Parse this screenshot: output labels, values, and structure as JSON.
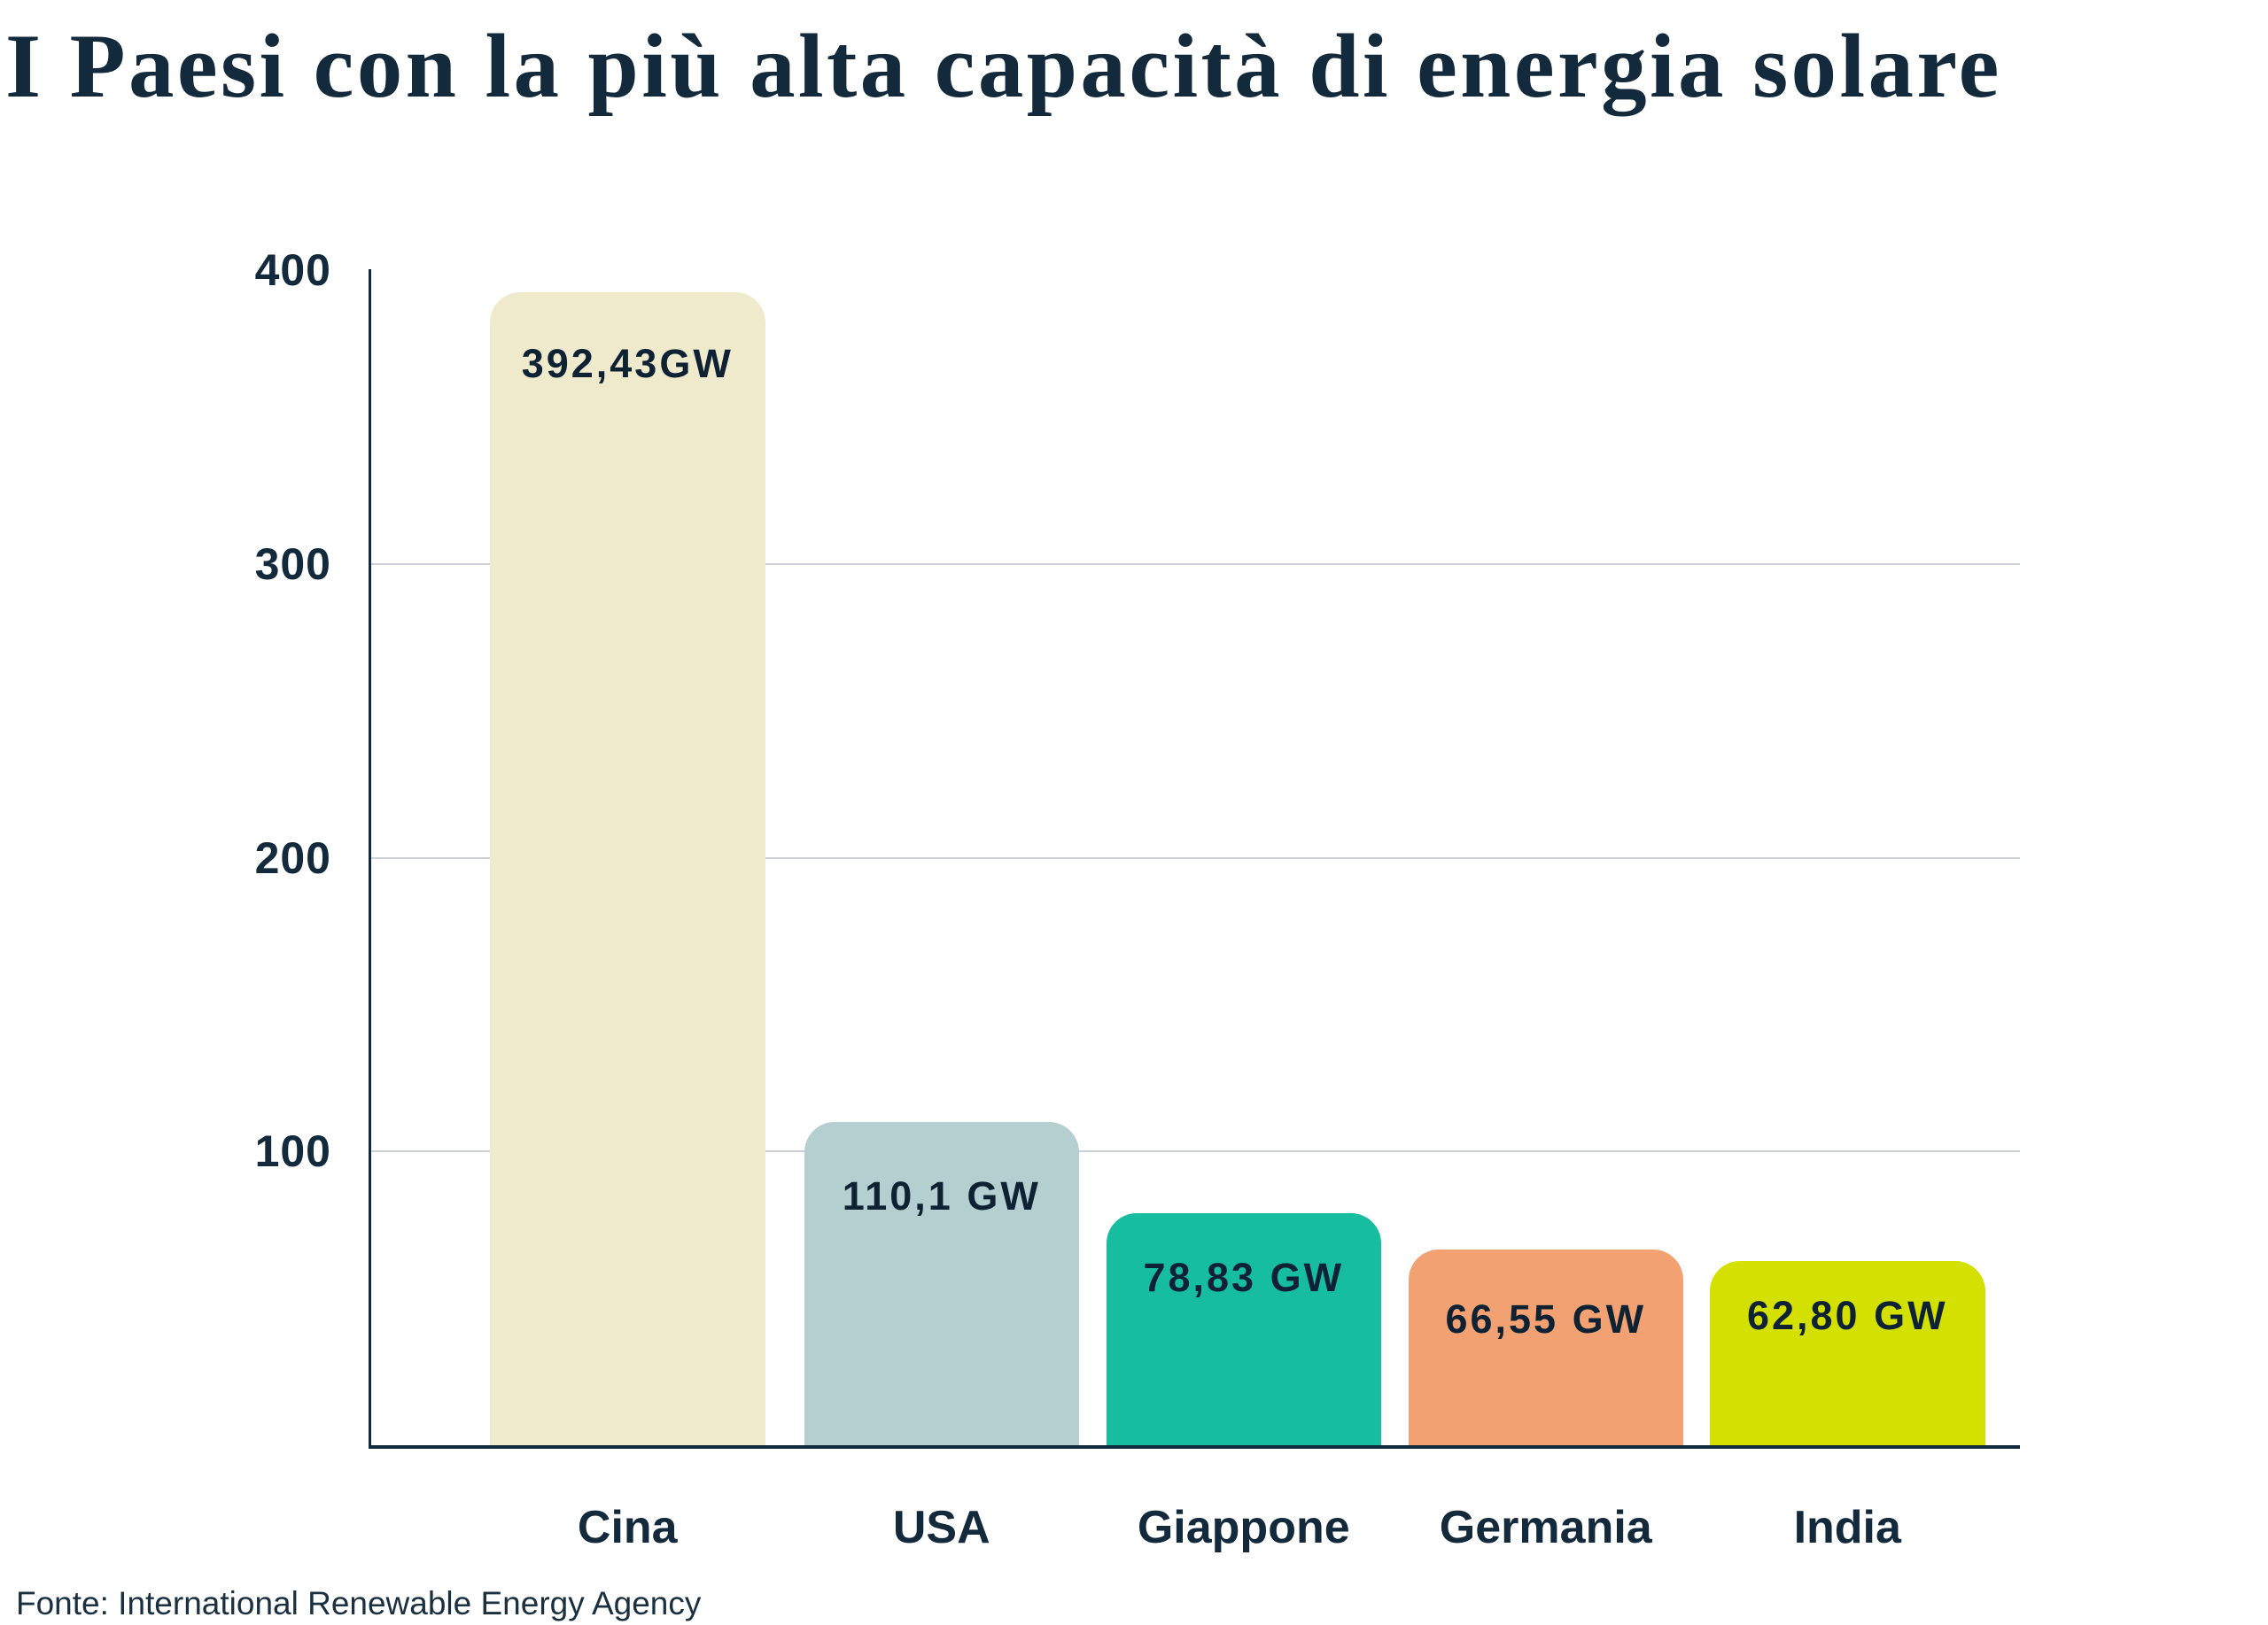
{
  "chart_data": {
    "type": "bar",
    "title": "I Paesi con la più alta capacità di energia solare",
    "categories": [
      "Cina",
      "USA",
      "Giappone",
      "Germania",
      "India"
    ],
    "values": [
      392.43,
      110.1,
      78.83,
      66.55,
      62.8
    ],
    "value_labels": [
      "392,43GW",
      "110,1 GW",
      "78,83 GW",
      "66,55 GW",
      "62,80 GW"
    ],
    "bar_colors": [
      "#F0EACC",
      "#B5CFD1",
      "#16BD9F",
      "#F2A173",
      "#D4E000"
    ],
    "unit": "GW",
    "ylim": [
      0,
      400
    ],
    "yticks": [
      400,
      300,
      200,
      100
    ],
    "grid": "horizontal gridlines at 100/200/300",
    "legend": "none",
    "xlabel": "",
    "ylabel": "",
    "source": "Fonte: International Renewable Energy Agency",
    "colors": {
      "text": "#13293C",
      "axis": "#13293C",
      "gridline": "#CBD1D7",
      "background": "#FFFFFF"
    }
  }
}
